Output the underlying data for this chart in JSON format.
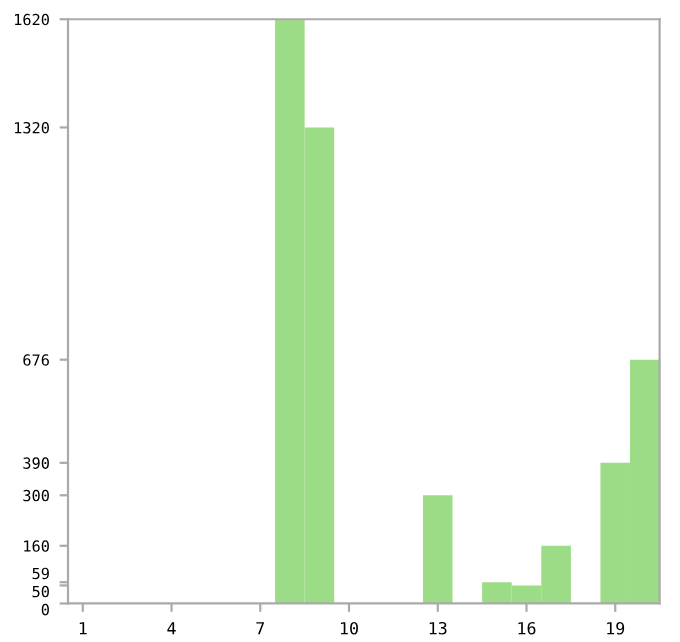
{
  "chart_data": {
    "type": "bar",
    "categories": [
      "1",
      null,
      null,
      "4",
      null,
      null,
      "7",
      null,
      null,
      "10",
      null,
      null,
      "13",
      null,
      null,
      "16",
      null,
      null,
      "19",
      null
    ],
    "values": [
      0,
      0,
      0,
      0,
      0,
      0,
      0,
      1620,
      1320,
      0,
      0,
      0,
      300,
      0,
      59,
      50,
      160,
      0,
      390,
      676
    ],
    "color": "#9cdc86",
    "ylim": [
      0,
      1620
    ],
    "yticks": [
      0,
      50,
      59,
      160,
      300,
      390,
      676,
      1320,
      1620
    ],
    "grid": false
  }
}
